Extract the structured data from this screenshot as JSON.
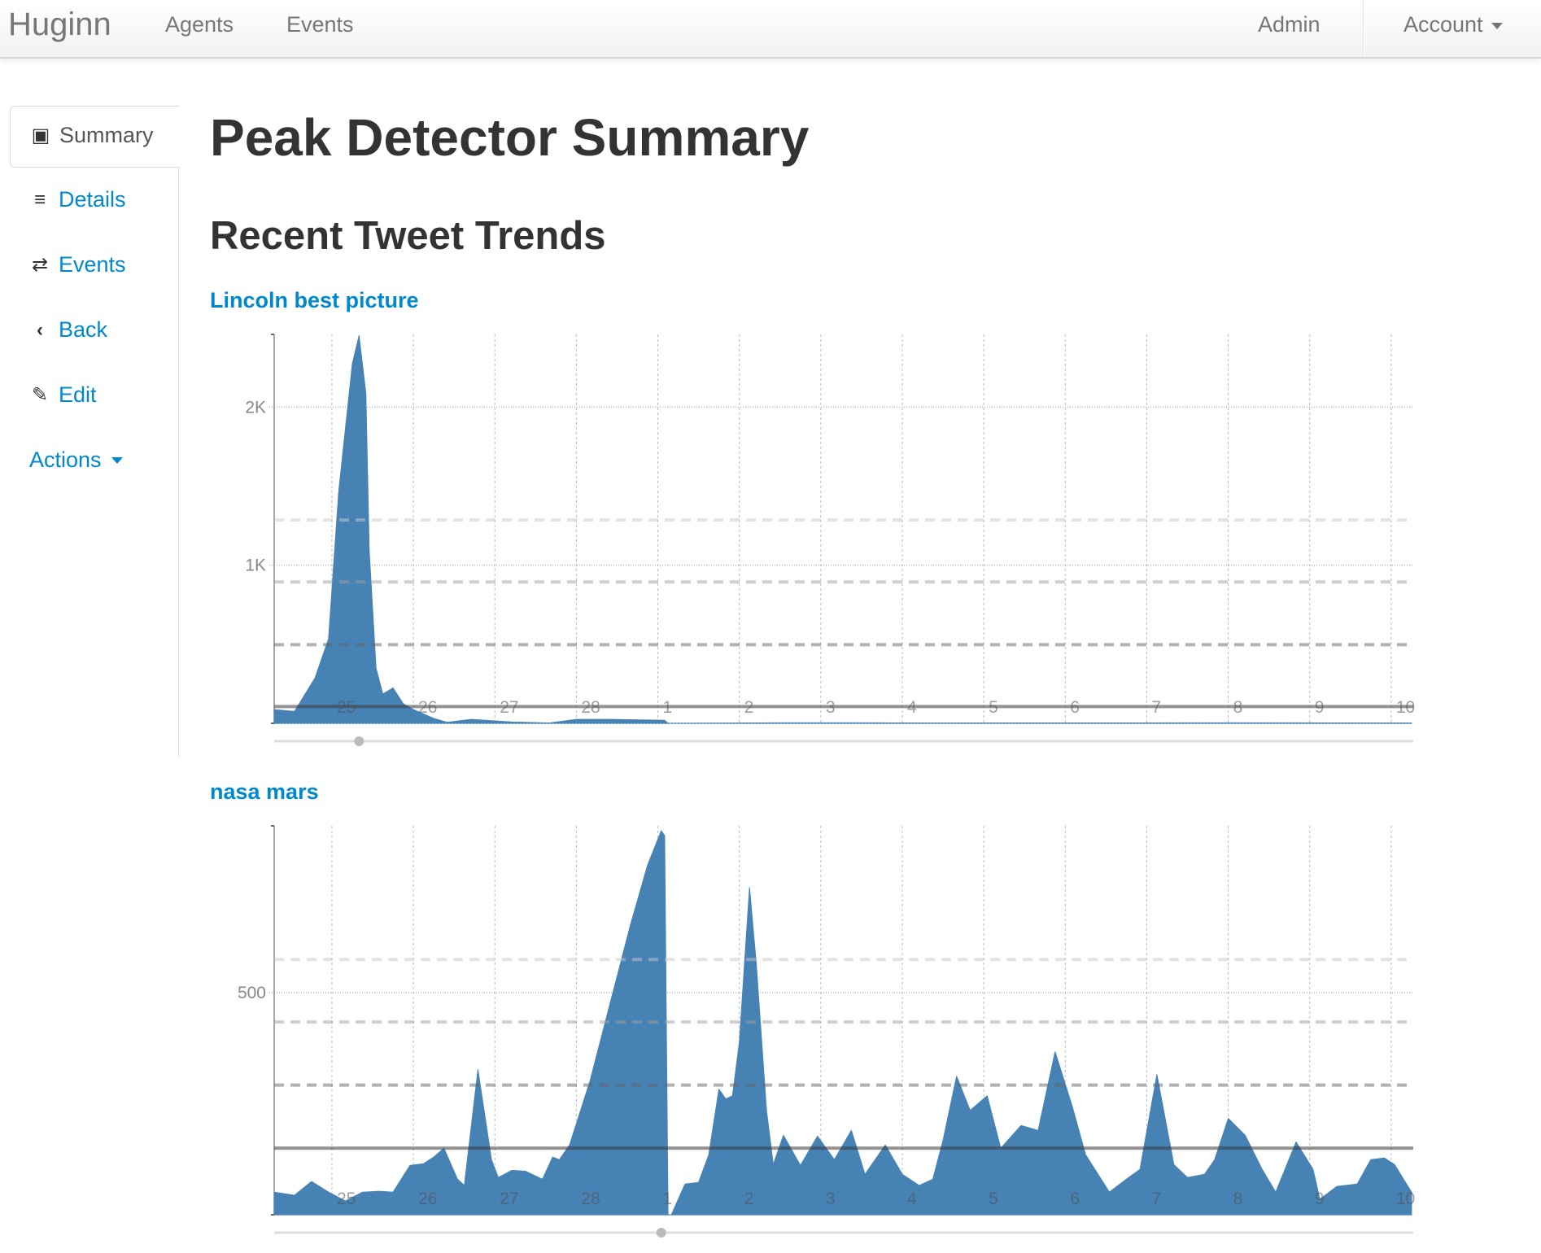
{
  "navbar": {
    "brand": "Huginn",
    "links": [
      "Agents",
      "Events"
    ],
    "admin": "Admin",
    "account": "Account"
  },
  "sidebar": {
    "items": [
      {
        "label": "Summary",
        "icon": "picture-icon",
        "active": true
      },
      {
        "label": "Details",
        "icon": "indent-icon"
      },
      {
        "label": "Events",
        "icon": "shuffle-icon"
      },
      {
        "label": "Back",
        "icon": "chevron-left-icon"
      },
      {
        "label": "Edit",
        "icon": "pencil-icon"
      },
      {
        "label": "Actions",
        "icon": "caret-down-icon"
      }
    ]
  },
  "page": {
    "title": "Peak Detector Summary",
    "subtitle": "Recent Tweet Trends"
  },
  "colors": {
    "area": "#4682b4",
    "link": "#0088cc"
  },
  "chart_data": [
    {
      "type": "area",
      "title": "Lincoln best picture",
      "x_range": [
        "Feb 24 07:00",
        "Mar 10 06:30"
      ],
      "x_tick_labels": [
        "25",
        "26",
        "27",
        "28",
        "1",
        "2",
        "3",
        "4",
        "5",
        "6",
        "7",
        "8",
        "9",
        "10"
      ],
      "ylim": [
        0,
        2460
      ],
      "y_ticks": [
        {
          "value": 1000,
          "label": "1K"
        },
        {
          "value": 2000,
          "label": "2K"
        }
      ],
      "threshold_lines": [
        {
          "value": 1286,
          "style": "dashed-light"
        },
        {
          "value": 894,
          "style": "dashed-medium"
        },
        {
          "value": 497,
          "style": "dashed-dark"
        },
        {
          "value": 106,
          "style": "solid"
        }
      ],
      "points": [
        [
          "Feb 24 07:00",
          87
        ],
        [
          "Feb 24 13:00",
          75
        ],
        [
          "Feb 24 19:00",
          286
        ],
        [
          "Feb 24 23:00",
          534
        ],
        [
          "Feb 25 02:00",
          1466
        ],
        [
          "Feb 25 06:00",
          2273
        ],
        [
          "Feb 25 08:00",
          2453
        ],
        [
          "Feb 25 10:00",
          2087
        ],
        [
          "Feb 25 11:00",
          1093
        ],
        [
          "Feb 25 13:00",
          348
        ],
        [
          "Feb 25 15:00",
          186
        ],
        [
          "Feb 25 18:00",
          224
        ],
        [
          "Feb 25 21:00",
          124
        ],
        [
          "Feb 26 00:00",
          87
        ],
        [
          "Feb 26 06:00",
          31
        ],
        [
          "Feb 26 10:00",
          6
        ],
        [
          "Feb 26 17:00",
          25
        ],
        [
          "Feb 27 05:00",
          8
        ],
        [
          "Feb 27 16:00",
          2
        ],
        [
          "Feb 28 00:00",
          25
        ],
        [
          "Feb 28 10:00",
          25
        ],
        [
          "Mar 1 02:00",
          19
        ],
        [
          "Mar 1 03:00",
          0
        ],
        [
          "Mar 2 12:00",
          3
        ],
        [
          "Mar 3 12:00",
          3
        ],
        [
          "Mar 4 12:00",
          2
        ],
        [
          "Mar 8 00:00",
          3
        ],
        [
          "Mar 10 06:00",
          2
        ]
      ]
    },
    {
      "type": "area",
      "title": "nasa mars",
      "x_range": [
        "Feb 24 07:00",
        "Mar 10 06:30"
      ],
      "x_tick_labels": [
        "25",
        "26",
        "27",
        "28",
        "1",
        "2",
        "3",
        "4",
        "5",
        "6",
        "7",
        "8",
        "9",
        "10"
      ],
      "ylim": [
        0,
        876
      ],
      "y_ticks": [
        {
          "value": 500,
          "label": "500"
        }
      ],
      "threshold_lines": [
        {
          "value": 575,
          "style": "dashed-light"
        },
        {
          "value": 434,
          "style": "dashed-medium"
        },
        {
          "value": 292,
          "style": "dashed-dark"
        },
        {
          "value": 150,
          "style": "solid"
        }
      ],
      "points": [
        [
          "Feb 24 07:00",
          51
        ],
        [
          "Feb 24 13:00",
          44
        ],
        [
          "Feb 24 18:00",
          75
        ],
        [
          "Feb 24 23:00",
          51
        ],
        [
          "Feb 25 04:00",
          31
        ],
        [
          "Feb 25 09:00",
          51
        ],
        [
          "Feb 25 14:00",
          53
        ],
        [
          "Feb 25 18:00",
          51
        ],
        [
          "Feb 25 23:00",
          111
        ],
        [
          "Feb 26 03:00",
          115
        ],
        [
          "Feb 26 06:00",
          130
        ],
        [
          "Feb 26 09:00",
          150
        ],
        [
          "Feb 26 13:00",
          80
        ],
        [
          "Feb 26 15:00",
          66
        ],
        [
          "Feb 26 19:00",
          327
        ],
        [
          "Feb 26 23:00",
          124
        ],
        [
          "Feb 27 01:00",
          84
        ],
        [
          "Feb 27 05:00",
          100
        ],
        [
          "Feb 27 09:00",
          98
        ],
        [
          "Feb 27 14:00",
          80
        ],
        [
          "Feb 27 17:00",
          130
        ],
        [
          "Feb 27 19:00",
          124
        ],
        [
          "Feb 27 22:00",
          157
        ],
        [
          "Feb 28 04:00",
          301
        ],
        [
          "Feb 28 10:00",
          478
        ],
        [
          "Feb 28 16:00",
          655
        ],
        [
          "Feb 28 21:00",
          788
        ],
        [
          "Mar 1 01:00",
          865
        ],
        [
          "Mar 1 02:00",
          854
        ],
        [
          "Mar 1 03:00",
          0
        ],
        [
          "Mar 1 04:00",
          0
        ],
        [
          "Mar 1 08:00",
          69
        ],
        [
          "Mar 1 12:00",
          73
        ],
        [
          "Mar 1 15:00",
          135
        ],
        [
          "Mar 1 18:00",
          283
        ],
        [
          "Mar 1 20:00",
          261
        ],
        [
          "Mar 1 22:00",
          268
        ],
        [
          "Mar 2 00:00",
          389
        ],
        [
          "Mar 2 03:00",
          737
        ],
        [
          "Mar 2 05:00",
          566
        ],
        [
          "Mar 2 08:00",
          235
        ],
        [
          "Mar 2 10:00",
          113
        ],
        [
          "Mar 2 13:00",
          179
        ],
        [
          "Mar 2 18:00",
          111
        ],
        [
          "Mar 2 23:00",
          177
        ],
        [
          "Mar 3 04:00",
          124
        ],
        [
          "Mar 3 09:00",
          190
        ],
        [
          "Mar 3 13:00",
          91
        ],
        [
          "Mar 3 19:00",
          157
        ],
        [
          "Mar 4 00:00",
          91
        ],
        [
          "Mar 4 05:00",
          66
        ],
        [
          "Mar 4 09:00",
          80
        ],
        [
          "Mar 4 12:00",
          168
        ],
        [
          "Mar 4 16:00",
          312
        ],
        [
          "Mar 4 20:00",
          235
        ],
        [
          "Mar 5 01:00",
          268
        ],
        [
          "Mar 5 05:00",
          150
        ],
        [
          "Mar 5 11:00",
          201
        ],
        [
          "Mar 5 16:00",
          190
        ],
        [
          "Mar 5 21:00",
          367
        ],
        [
          "Mar 6 02:00",
          246
        ],
        [
          "Mar 6 06:00",
          135
        ],
        [
          "Mar 6 13:00",
          51
        ],
        [
          "Mar 6 18:00",
          80
        ],
        [
          "Mar 6 22:00",
          102
        ],
        [
          "Mar 7 03:00",
          316
        ],
        [
          "Mar 7 08:00",
          113
        ],
        [
          "Mar 7 12:00",
          84
        ],
        [
          "Mar 7 17:00",
          91
        ],
        [
          "Mar 7 20:00",
          124
        ],
        [
          "Mar 8 00:00",
          217
        ],
        [
          "Mar 8 05:00",
          179
        ],
        [
          "Mar 8 10:00",
          102
        ],
        [
          "Mar 8 14:00",
          51
        ],
        [
          "Mar 8 20:00",
          164
        ],
        [
          "Mar 9 01:00",
          102
        ],
        [
          "Mar 9 03:00",
          35
        ],
        [
          "Mar 9 08:00",
          64
        ],
        [
          "Mar 9 14:00",
          69
        ],
        [
          "Mar 9 18:00",
          124
        ],
        [
          "Mar 9 22:00",
          128
        ],
        [
          "Mar 10 01:00",
          113
        ],
        [
          "Mar 10 06:00",
          51
        ]
      ]
    }
  ]
}
